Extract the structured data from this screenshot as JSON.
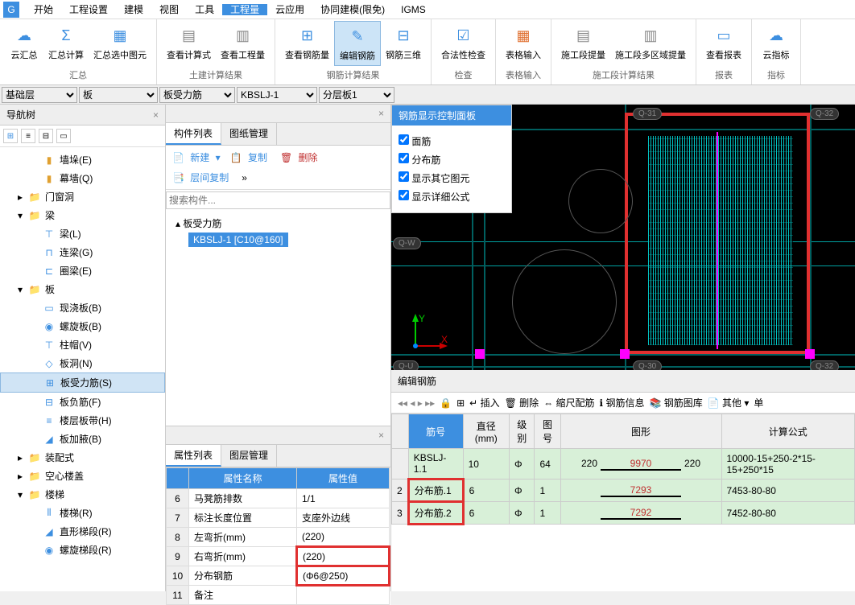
{
  "menu": {
    "items": [
      "开始",
      "工程设置",
      "建模",
      "视图",
      "工具",
      "工程量",
      "云应用",
      "协同建模(限免)",
      "IGMS"
    ],
    "active": 5
  },
  "ribbon": {
    "groups": [
      {
        "title": "汇总",
        "items": [
          {
            "lbl": "云汇总",
            "ic": "☁",
            "c": "#3d8fe0"
          },
          {
            "lbl": "汇总计算",
            "ic": "Σ",
            "c": "#3d8fe0"
          },
          {
            "lbl": "汇总选中图元",
            "ic": "▦",
            "c": "#3d8fe0"
          }
        ]
      },
      {
        "title": "土建计算结果",
        "items": [
          {
            "lbl": "查看计算式",
            "ic": "▤",
            "c": "#888"
          },
          {
            "lbl": "查看工程量",
            "ic": "▥",
            "c": "#888"
          }
        ]
      },
      {
        "title": "钢筋计算结果",
        "items": [
          {
            "lbl": "查看钢筋量",
            "ic": "⊞",
            "c": "#3d8fe0"
          },
          {
            "lbl": "编辑钢筋",
            "ic": "✎",
            "c": "#3d8fe0",
            "active": true
          },
          {
            "lbl": "钢筋三维",
            "ic": "⊟",
            "c": "#3d8fe0"
          }
        ]
      },
      {
        "title": "检查",
        "items": [
          {
            "lbl": "合法性检查",
            "ic": "☑",
            "c": "#3d8fe0"
          }
        ]
      },
      {
        "title": "表格输入",
        "items": [
          {
            "lbl": "表格输入",
            "ic": "▦",
            "c": "#e07030"
          }
        ]
      },
      {
        "title": "施工段计算结果",
        "items": [
          {
            "lbl": "施工段提量",
            "ic": "▤",
            "c": "#888"
          },
          {
            "lbl": "施工段多区域提量",
            "ic": "▥",
            "c": "#888"
          }
        ]
      },
      {
        "title": "报表",
        "items": [
          {
            "lbl": "查看报表",
            "ic": "▭",
            "c": "#3d8fe0"
          }
        ]
      },
      {
        "title": "指标",
        "items": [
          {
            "lbl": "云指标",
            "ic": "☁",
            "c": "#3d8fe0"
          }
        ]
      }
    ]
  },
  "selectors": {
    "floor": "基础层",
    "cat": "板",
    "type": "板受力筋",
    "comp": "KBSLJ-1",
    "layer": "分层板1"
  },
  "nav": {
    "title": "导航树",
    "items": [
      {
        "lbl": "墙垛(E)",
        "lv": 2,
        "ic": "▮",
        "c": "#e0a030"
      },
      {
        "lbl": "幕墙(Q)",
        "lv": 2,
        "ic": "▮",
        "c": "#e0a030"
      },
      {
        "lbl": "门窗洞",
        "lv": 1,
        "exp": "▸",
        "ic": "📁",
        "c": "#e0a030"
      },
      {
        "lbl": "梁",
        "lv": 1,
        "exp": "▾",
        "ic": "📁",
        "c": "#e0a030"
      },
      {
        "lbl": "梁(L)",
        "lv": 2,
        "ic": "⊤",
        "c": "#3d8fe0"
      },
      {
        "lbl": "连梁(G)",
        "lv": 2,
        "ic": "⊓",
        "c": "#3d8fe0"
      },
      {
        "lbl": "圈梁(E)",
        "lv": 2,
        "ic": "⊏",
        "c": "#3d8fe0"
      },
      {
        "lbl": "板",
        "lv": 1,
        "exp": "▾",
        "ic": "📁",
        "c": "#e0a030"
      },
      {
        "lbl": "现浇板(B)",
        "lv": 2,
        "ic": "▭",
        "c": "#3d8fe0"
      },
      {
        "lbl": "螺旋板(B)",
        "lv": 2,
        "ic": "◉",
        "c": "#3d8fe0"
      },
      {
        "lbl": "柱帽(V)",
        "lv": 2,
        "ic": "⊤",
        "c": "#3d8fe0"
      },
      {
        "lbl": "板洞(N)",
        "lv": 2,
        "ic": "◇",
        "c": "#3d8fe0"
      },
      {
        "lbl": "板受力筋(S)",
        "lv": 2,
        "ic": "⊞",
        "c": "#3d8fe0",
        "sel": true
      },
      {
        "lbl": "板负筋(F)",
        "lv": 2,
        "ic": "⊟",
        "c": "#3d8fe0"
      },
      {
        "lbl": "楼层板带(H)",
        "lv": 2,
        "ic": "≡",
        "c": "#3d8fe0"
      },
      {
        "lbl": "板加腋(B)",
        "lv": 2,
        "ic": "◢",
        "c": "#3d8fe0"
      },
      {
        "lbl": "装配式",
        "lv": 1,
        "exp": "▸",
        "ic": "📁",
        "c": "#e0a030"
      },
      {
        "lbl": "空心楼盖",
        "lv": 1,
        "exp": "▸",
        "ic": "📁",
        "c": "#e0a030"
      },
      {
        "lbl": "楼梯",
        "lv": 1,
        "exp": "▾",
        "ic": "📁",
        "c": "#e0a030"
      },
      {
        "lbl": "楼梯(R)",
        "lv": 2,
        "ic": "⦀",
        "c": "#3d8fe0"
      },
      {
        "lbl": "直形梯段(R)",
        "lv": 2,
        "ic": "◢",
        "c": "#3d8fe0"
      },
      {
        "lbl": "螺旋梯段(R)",
        "lv": 2,
        "ic": "◉",
        "c": "#3d8fe0"
      }
    ]
  },
  "comp": {
    "tab1": "构件列表",
    "tab2": "图纸管理",
    "btns": {
      "new": "新建",
      "copy": "复制",
      "del": "删除",
      "dup": "层间复制"
    },
    "search_ph": "搜索构件...",
    "root": "板受力筋",
    "sel": "KBSLJ-1 [C10@160]"
  },
  "prop": {
    "tab1": "属性列表",
    "tab2": "图层管理",
    "h1": "属性名称",
    "h2": "属性值",
    "rows": [
      {
        "n": "6",
        "k": "马凳筋排数",
        "v": "1/1"
      },
      {
        "n": "7",
        "k": "标注长度位置",
        "v": "支座外边线"
      },
      {
        "n": "8",
        "k": "左弯折(mm)",
        "v": "(220)"
      },
      {
        "n": "9",
        "k": "右弯折(mm)",
        "v": "(220)",
        "hl": true
      },
      {
        "n": "10",
        "k": "分布钢筋",
        "v": "(Φ6@250)",
        "hl": true
      },
      {
        "n": "11",
        "k": "备注",
        "v": ""
      }
    ]
  },
  "ctrl": {
    "title": "钢筋显示控制面板",
    "opts": [
      "面筋",
      "分布筋",
      "显示其它图元",
      "显示详细公式"
    ]
  },
  "cad": {
    "labels": [
      "Q-31",
      "Q-32",
      "Q-W",
      "Q-U",
      "Q-30",
      "Q-32"
    ],
    "ax_y": "Y",
    "ax_x": "X"
  },
  "rebar": {
    "title": "编辑钢筋",
    "tools": {
      "nav": "◂◂ ◂ ▸ ▸▸",
      "ins": "插入",
      "del": "删除",
      "scale": "缩尺配筋",
      "info": "钢筋信息",
      "lib": "钢筋图库",
      "other": "其他",
      "unit": "单"
    },
    "hdr": {
      "name": "筋号",
      "dia": "直径(mm)",
      "grade": "级别",
      "code": "图号",
      "shape": "图形",
      "formula": "计算公式"
    },
    "rows": [
      {
        "n": "",
        "name": "KBSLJ-1.1",
        "dia": "10",
        "grade": "Φ",
        "code": "64",
        "s1": "220",
        "sm": "9970",
        "s2": "220",
        "f": "10000-15+250-2*15-15+250*15"
      },
      {
        "n": "2",
        "name": "分布筋.1",
        "dia": "6",
        "grade": "Φ",
        "code": "1",
        "s1": "",
        "sm": "7293",
        "s2": "",
        "f": "7453-80-80",
        "hl": true
      },
      {
        "n": "3",
        "name": "分布筋.2",
        "dia": "6",
        "grade": "Φ",
        "code": "1",
        "s1": "",
        "sm": "7292",
        "s2": "",
        "f": "7452-80-80",
        "hl": true
      }
    ]
  }
}
